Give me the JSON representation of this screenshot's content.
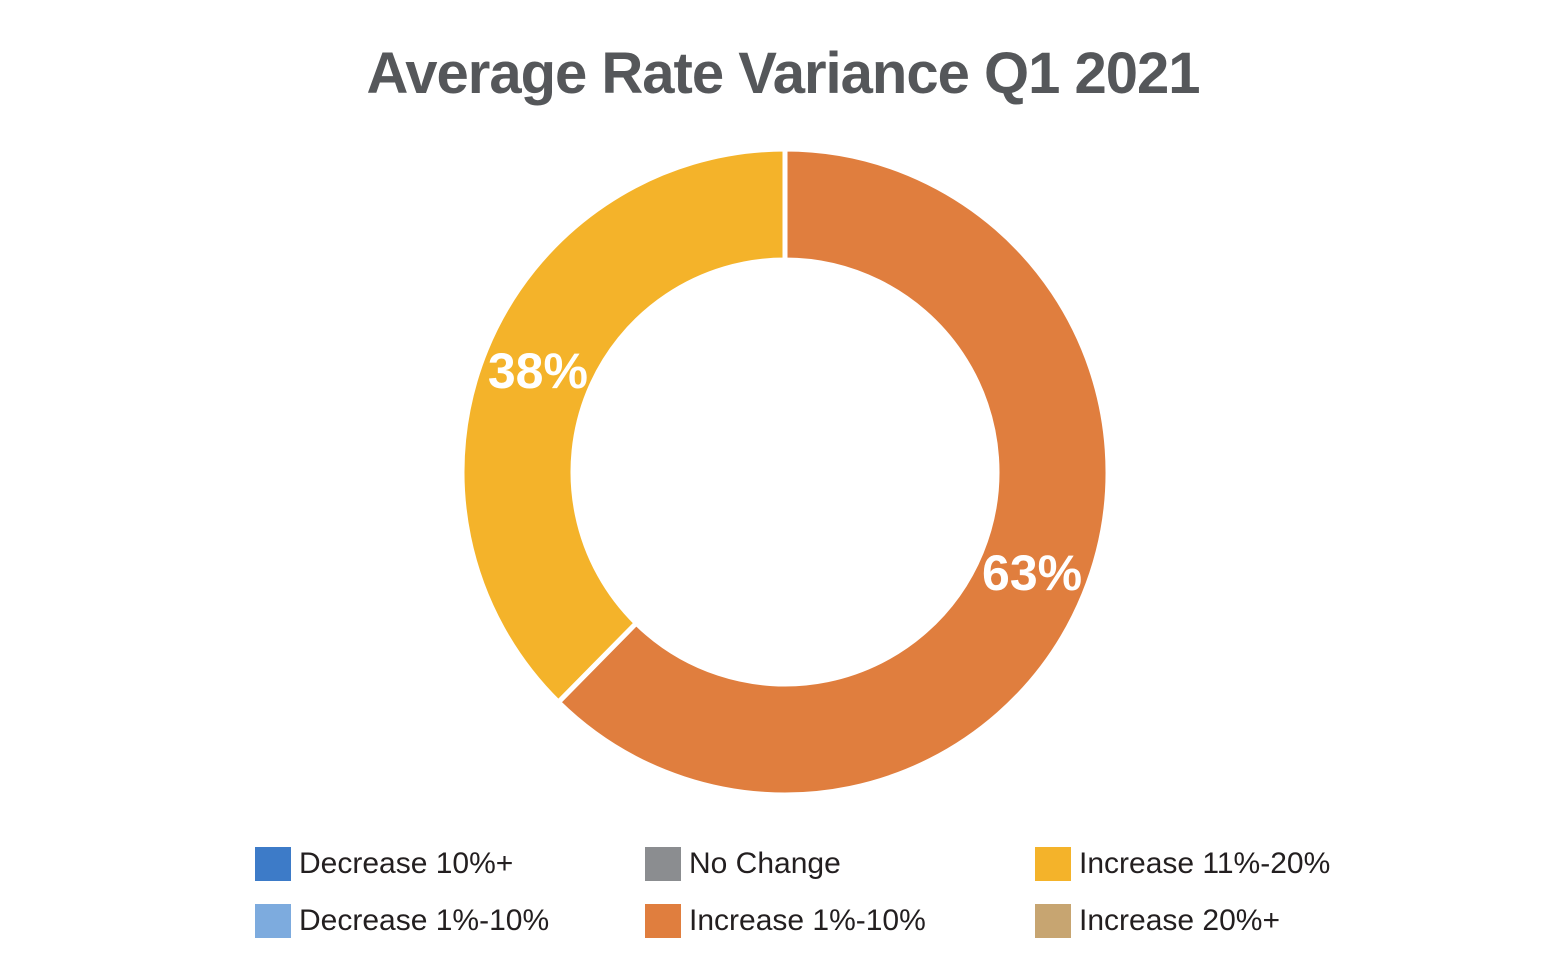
{
  "title": "Average Rate Variance Q1 2021",
  "text_colors": {
    "title_color": "#55575a",
    "legend_text_color": "#231f20",
    "slice_label_color": "#ffffff"
  },
  "chart_data": {
    "type": "pie",
    "donut": true,
    "title": "Average Rate Variance Q1 2021",
    "categories": [
      "Decrease 10%+",
      "Decrease 1%-10%",
      "No Change",
      "Increase 1%-10%",
      "Increase 11%-20%",
      "Increase 20%+"
    ],
    "values": [
      0,
      0,
      0,
      63,
      38,
      0
    ],
    "colors": [
      "#3d7bc8",
      "#7dabde",
      "#8b8d90",
      "#e07e3e",
      "#f4b32a",
      "#c7a571"
    ],
    "slice_labels": [
      "",
      "",
      "",
      "63%",
      "38%",
      ""
    ],
    "start_angle_deg": 0,
    "direction": "clockwise",
    "legend_position": "bottom",
    "legend_rows": 2,
    "legend_columns": 3
  }
}
